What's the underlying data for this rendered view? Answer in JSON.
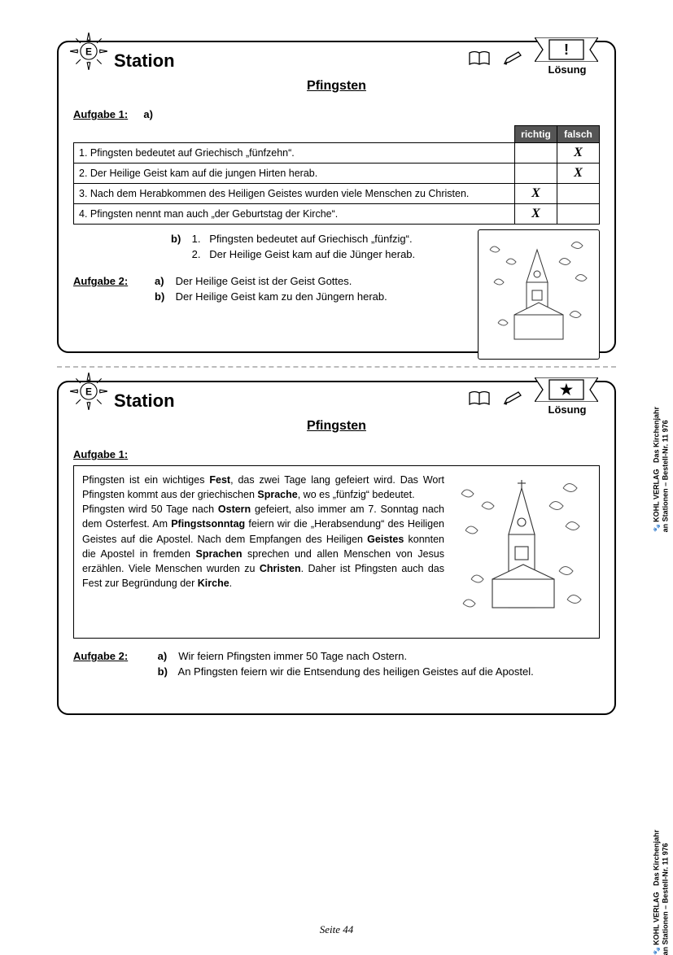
{
  "page": {
    "number": "Seite 44"
  },
  "credits": {
    "line1": "Das Kirchenjahr",
    "line2": "an Stationen – Bestell-Nr. 11 976",
    "publisher": "KOHL VERLAG"
  },
  "card1": {
    "station": "Station",
    "badge_letter": "E",
    "ribbon_symbol": "!",
    "loesung": "Lösung",
    "subtitle": "Pfingsten",
    "aufgabe1_label": "Aufgabe 1",
    "a_label": "a)",
    "b_label": "b)",
    "table": {
      "hdr_richtig": "richtig",
      "hdr_falsch": "falsch",
      "rows": [
        {
          "n": "1.",
          "text": "Pfingsten  bedeutet auf Griechisch „fünfzehn“.",
          "richtig": "",
          "falsch": "X"
        },
        {
          "n": "2.",
          "text": "Der Heilige Geist kam auf die jungen Hirten herab.",
          "richtig": "",
          "falsch": "X"
        },
        {
          "n": "3.",
          "text": "Nach dem Herabkommen des Heiligen Geistes wurden viele Menschen zu Christen.",
          "richtig": "X",
          "falsch": ""
        },
        {
          "n": "4.",
          "text": "Pfingsten nennt man auch „der Geburtstag der Kirche“.",
          "richtig": "X",
          "falsch": ""
        }
      ]
    },
    "b_items": [
      {
        "n": "1.",
        "text": "Pfingsten  bedeutet auf Griechisch „fünfzig“."
      },
      {
        "n": "2.",
        "text": "Der Heilige Geist kam auf die Jünger herab."
      }
    ],
    "aufgabe2_label": "Aufgabe 2",
    "aufgabe2": {
      "a": "Der Heilige Geist ist der Geist Gottes.",
      "b": "Der Heilige Geist kam zu den Jüngern herab."
    }
  },
  "card2": {
    "station": "Station",
    "badge_letter": "E",
    "ribbon_symbol": "★",
    "loesung": "Lösung",
    "subtitle": "Pfingsten",
    "aufgabe1_label": "Aufgabe 1",
    "text_html": "Pfingsten ist ein wichtiges <b>Fest</b>, das zwei Tage lang gefeiert wird. Das Wort Pfingsten kommt aus der griechischen <b>Sprache</b>, wo es „fünfzig“ bedeutet.<br>Pfingsten wird  50 Tage nach <b>Ostern</b> gefeiert, also immer am 7. Sonntag nach dem Osterfest. Am <b>Pfingstsonntag</b> feiern wir die „Herabsendung“ des Heiligen Geistes auf die Apostel. Nach dem Empfangen des Heiligen <b>Geistes</b> konnten die Apostel in fremden <b>Sprachen</b> sprechen und allen Menschen von Jesus erzählen. Viele Menschen wurden zu <b>Christen</b>. Daher ist Pfingsten auch das Fest zur Begründung der <b>Kirche</b>.",
    "aufgabe2_label": "Aufgabe 2",
    "aufgabe2": {
      "a": "Wir feiern Pfingsten immer 50 Tage nach Ostern.",
      "b": "An Pfingsten feiern wir die Entsendung des heiligen Geistes auf die Apostel."
    }
  }
}
